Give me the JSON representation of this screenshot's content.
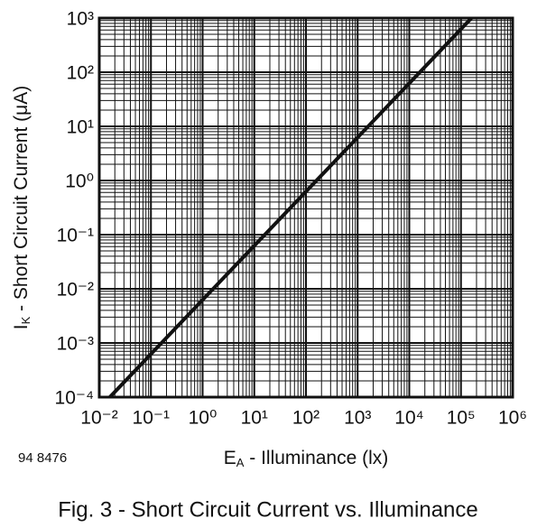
{
  "chart_data": {
    "type": "line",
    "log_x": true,
    "log_y": true,
    "grid": true,
    "minor_grid": true,
    "x_label": {
      "symbol": "E",
      "subscript": "A",
      "text": " - Illuminance (lx)"
    },
    "y_label": {
      "symbol": "I",
      "subscript": "K",
      "text": " - Short Circuit Current (μA)"
    },
    "x": [
      0.016,
      160000
    ],
    "series": [
      {
        "color": "#111111",
        "values": [
          0.0001,
          1000
        ]
      }
    ],
    "xlim": [
      0.01,
      1000000
    ],
    "xticks": [
      {
        "value": 0.01,
        "label": "10⁻²"
      },
      {
        "value": 0.1,
        "label": "10⁻¹"
      },
      {
        "value": 1,
        "label": "10⁰"
      },
      {
        "value": 10,
        "label": "10¹"
      },
      {
        "value": 100,
        "label": "10²"
      },
      {
        "value": 1000,
        "label": "10³"
      },
      {
        "value": 10000,
        "label": "10⁴"
      },
      {
        "value": 100000,
        "label": "10⁵"
      },
      {
        "value": 1000000,
        "label": "10⁶"
      }
    ],
    "ylim": [
      0.0001,
      1000
    ],
    "yticks": [
      {
        "value": 0.0001,
        "label": "10⁻⁴"
      },
      {
        "value": 0.001,
        "label": "10⁻³"
      },
      {
        "value": 0.01,
        "label": "10⁻²"
      },
      {
        "value": 0.1,
        "label": "10⁻¹"
      },
      {
        "value": 1,
        "label": "10⁰"
      },
      {
        "value": 10,
        "label": "10¹"
      },
      {
        "value": 100,
        "label": "10²"
      },
      {
        "value": 1000,
        "label": "10³"
      }
    ]
  },
  "figure_id": "94 8476",
  "caption": "Fig. 3 - Short Circuit Current vs. Illuminance"
}
